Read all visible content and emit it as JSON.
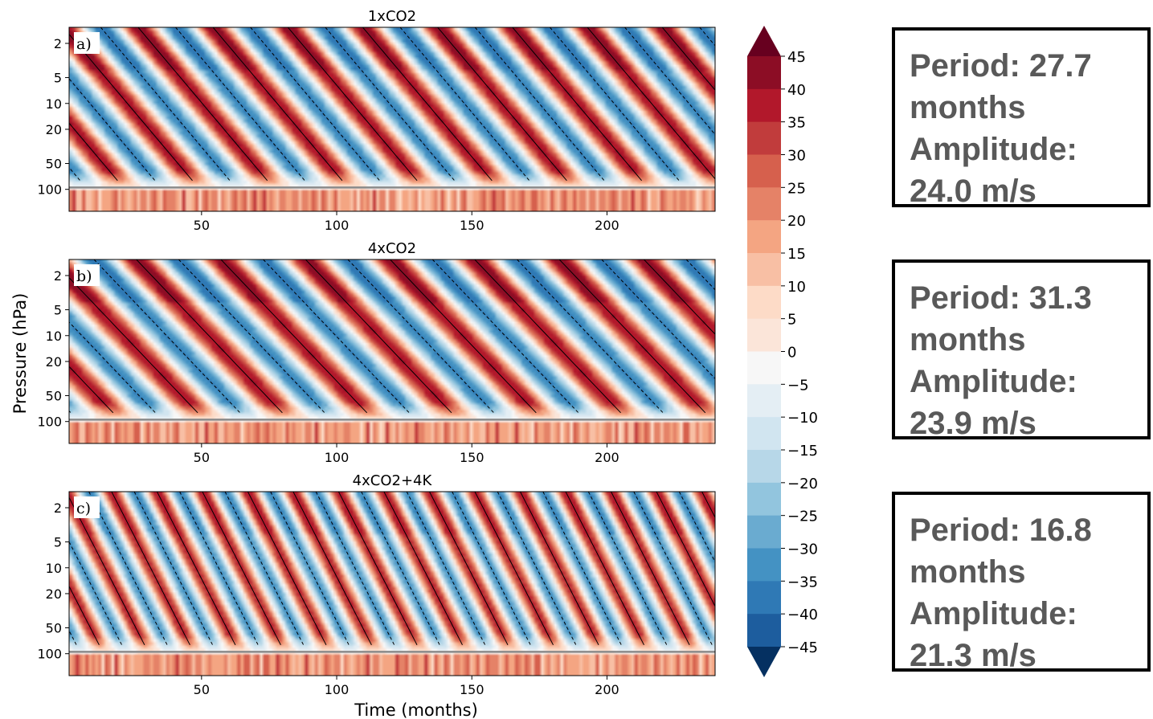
{
  "chart_data": {
    "type": "heatmap",
    "ylabel": "Pressure (hPa)",
    "xlabel": "Time (months)",
    "x_ticks": [
      50,
      100,
      150,
      200
    ],
    "xlim": [
      1,
      240
    ],
    "y_ticks": [
      2,
      5,
      10,
      20,
      50,
      100
    ],
    "ylim": [
      1.3,
      180
    ],
    "y_scale": "log",
    "y_inverted": true,
    "contour_levels": [
      -45,
      -40,
      -35,
      -30,
      -25,
      -20,
      -15,
      -10,
      -5,
      0,
      5,
      10,
      15,
      20,
      25,
      30,
      35,
      40,
      45
    ],
    "colormap": "RdBu_r",
    "colorbar_ticks": [
      "45",
      "40",
      "35",
      "30",
      "25",
      "20",
      "15",
      "10",
      "5",
      "0",
      "−5",
      "−10",
      "−15",
      "−20",
      "−25",
      "−30",
      "−35",
      "−40",
      "−45"
    ],
    "colorbar_colors": [
      "#053061",
      "#1d5d9e",
      "#2f79b5",
      "#4492c3",
      "#6aabd0",
      "#92c5de",
      "#b7d7e8",
      "#d1e5f0",
      "#e4eef4",
      "#f7f7f7",
      "#fbe5d9",
      "#fddbc7",
      "#f8bfa4",
      "#f4a582",
      "#e58267",
      "#d6604d",
      "#c13c3c",
      "#b2182b",
      "#8c0d25",
      "#67001f"
    ],
    "panels": [
      {
        "title": "1xCO2",
        "label": "a)",
        "period_months": 27.7,
        "amplitude_ms": 24.0
      },
      {
        "title": "4xCO2",
        "label": "b)",
        "period_months": 31.3,
        "amplitude_ms": 23.9
      },
      {
        "title": "4xCO2+4K",
        "label": "c)",
        "period_months": 16.8,
        "amplitude_ms": 21.3
      }
    ]
  },
  "info_boxes": [
    {
      "line1": "Period: 27.7",
      "line2": "months",
      "line3": "Amplitude:",
      "line4": "24.0 m/s"
    },
    {
      "line1": "Period: 31.3",
      "line2": "months",
      "line3": "Amplitude:",
      "line4": "23.9 m/s"
    },
    {
      "line1": "Period: 16.8",
      "line2": "months",
      "line3": "Amplitude:",
      "line4": "21.3 m/s"
    }
  ]
}
